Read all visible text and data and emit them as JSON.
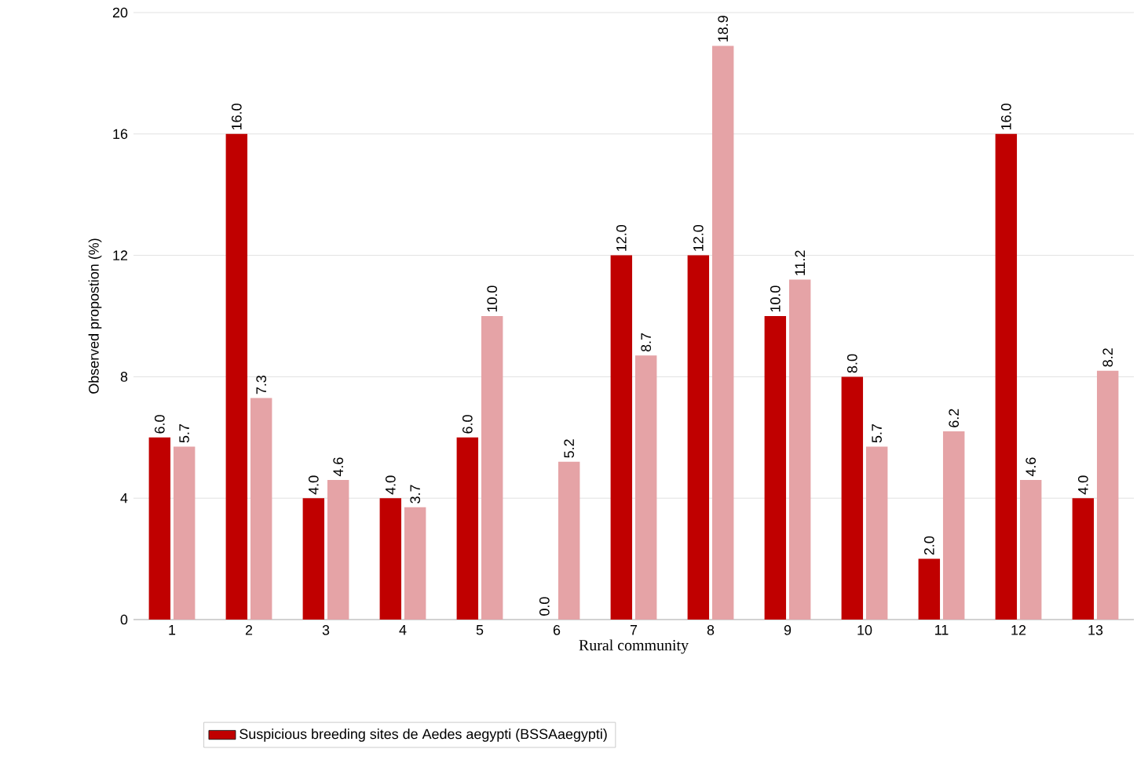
{
  "chart_data": {
    "type": "bar",
    "categories": [
      "1",
      "2",
      "3",
      "4",
      "5",
      "6",
      "7",
      "8",
      "9",
      "10",
      "11",
      "12",
      "13"
    ],
    "series": [
      {
        "name": "Suspicious breeding sites de Aedes aegypti (BSSAaegypti)",
        "color": "#c00000",
        "values": [
          6.0,
          16.0,
          4.0,
          4.0,
          6.0,
          0.0,
          12.0,
          12.0,
          10.0,
          8.0,
          2.0,
          16.0,
          4.0
        ],
        "value_labels": [
          "6.0",
          "16.0",
          "4.0",
          "4.0",
          "6.0",
          "0.0",
          "12.0",
          "12.0",
          "10.0",
          "8.0",
          "2.0",
          "16.0",
          "4.0"
        ]
      },
      {
        "color": "#e5a3a6",
        "values": [
          5.7,
          7.3,
          4.6,
          3.7,
          10.0,
          5.2,
          8.7,
          18.9,
          11.2,
          5.7,
          6.2,
          4.6,
          8.2
        ],
        "value_labels": [
          "5.7",
          "7.3",
          "4.6",
          "3.7",
          "10.0",
          "5.2",
          "8.7",
          "18.9",
          "11.2",
          "5.7",
          "6.2",
          "4.6",
          "8.2"
        ]
      }
    ],
    "xlabel": "Rural community",
    "ylabel": "Observed propostion (%)",
    "ylim": [
      0,
      20
    ],
    "yticks": [
      0,
      4,
      8,
      12,
      16,
      20
    ],
    "grid": "y",
    "legend": "bottom"
  }
}
